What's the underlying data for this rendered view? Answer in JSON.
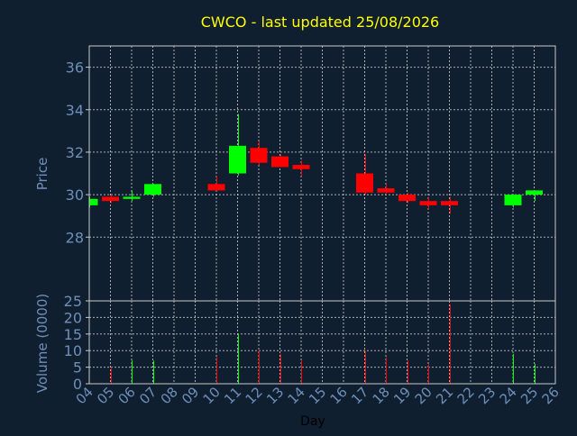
{
  "chart_data": {
    "type": "candlestick",
    "title": "CWCO - last updated 25/08/2026",
    "xlabel": "Day",
    "ylabel_price": "Price",
    "ylabel_volume": "Volume (0000)",
    "x_ticks": [
      "04",
      "05",
      "06",
      "07",
      "08",
      "09",
      "10",
      "11",
      "12",
      "13",
      "14",
      "15",
      "16",
      "17",
      "18",
      "19",
      "20",
      "21",
      "22",
      "23",
      "24",
      "25",
      "26"
    ],
    "price_ticks": [
      28,
      30,
      32,
      34,
      36
    ],
    "price_ylim": [
      25,
      37
    ],
    "volume_ticks": [
      0,
      5,
      10,
      15,
      20,
      25
    ],
    "volume_ylim": [
      0,
      25
    ],
    "grid": true,
    "colors": {
      "background": "#0f1f30",
      "axis": "#c8c8c8",
      "tick_label": "#6f8fb8",
      "title": "#ffff00",
      "up": "#00ff00",
      "down": "#ff0000"
    },
    "candles": [
      {
        "day": "04",
        "open": 29.5,
        "high": 29.9,
        "low": 29.4,
        "close": 29.8,
        "volume": 0
      },
      {
        "day": "05",
        "open": 29.9,
        "high": 30.0,
        "low": 29.6,
        "close": 29.7,
        "volume": 5
      },
      {
        "day": "06",
        "open": 29.8,
        "high": 30.2,
        "low": 29.7,
        "close": 29.9,
        "volume": 7
      },
      {
        "day": "07",
        "open": 30.0,
        "high": 30.5,
        "low": 29.9,
        "close": 30.5,
        "volume": 7
      },
      {
        "day": "10",
        "open": 30.5,
        "high": 30.9,
        "low": 30.2,
        "close": 30.2,
        "volume": 8
      },
      {
        "day": "11",
        "open": 31.0,
        "high": 33.8,
        "low": 30.9,
        "close": 32.3,
        "volume": 15
      },
      {
        "day": "12",
        "open": 32.2,
        "high": 32.5,
        "low": 31.4,
        "close": 31.5,
        "volume": 10
      },
      {
        "day": "13",
        "open": 31.8,
        "high": 31.9,
        "low": 31.3,
        "close": 31.3,
        "volume": 9
      },
      {
        "day": "14",
        "open": 31.4,
        "high": 31.6,
        "low": 30.9,
        "close": 31.2,
        "volume": 7
      },
      {
        "day": "17",
        "open": 31.0,
        "high": 31.9,
        "low": 30.0,
        "close": 30.1,
        "volume": 10
      },
      {
        "day": "18",
        "open": 30.3,
        "high": 30.5,
        "low": 30.0,
        "close": 30.1,
        "volume": 8
      },
      {
        "day": "19",
        "open": 30.0,
        "high": 30.1,
        "low": 29.6,
        "close": 29.7,
        "volume": 7
      },
      {
        "day": "20",
        "open": 29.7,
        "high": 29.9,
        "low": 29.3,
        "close": 29.5,
        "volume": 6
      },
      {
        "day": "21",
        "open": 29.7,
        "high": 29.9,
        "low": 29.1,
        "close": 29.5,
        "volume": 24
      },
      {
        "day": "24",
        "open": 29.5,
        "high": 30.0,
        "low": 29.4,
        "close": 30.0,
        "volume": 9
      },
      {
        "day": "25",
        "open": 30.0,
        "high": 30.2,
        "low": 29.7,
        "close": 30.2,
        "volume": 6
      }
    ]
  }
}
